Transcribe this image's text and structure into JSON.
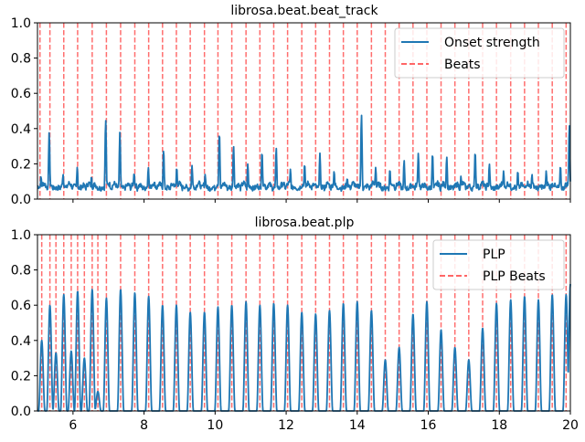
{
  "chart_data": [
    {
      "type": "line",
      "title": "librosa.beat.beat_track",
      "xlabel": "",
      "ylabel": "",
      "xlim": [
        5,
        20
      ],
      "ylim": [
        0,
        1
      ],
      "yticks": [
        0.0,
        0.2,
        0.4,
        0.6,
        0.8,
        1.0
      ],
      "ytick_labels": [
        "0.0",
        "0.2",
        "0.4",
        "0.6",
        "0.8",
        "1.0"
      ],
      "show_xtick_labels": false,
      "legend_position": "top-right",
      "series": [
        {
          "name": "Onset strength",
          "kind": "line",
          "color": "#1f77b4",
          "peaks": [
            [
              5.1,
              0.13
            ],
            [
              5.33,
              0.38
            ],
            [
              5.72,
              0.14
            ],
            [
              6.12,
              0.18
            ],
            [
              6.52,
              0.13
            ],
            [
              6.92,
              0.45
            ],
            [
              7.32,
              0.38
            ],
            [
              7.72,
              0.15
            ],
            [
              8.12,
              0.18
            ],
            [
              8.55,
              0.28
            ],
            [
              8.92,
              0.18
            ],
            [
              9.35,
              0.19
            ],
            [
              9.72,
              0.14
            ],
            [
              10.12,
              0.38
            ],
            [
              10.52,
              0.3
            ],
            [
              10.92,
              0.2
            ],
            [
              11.32,
              0.27
            ],
            [
              11.72,
              0.29
            ],
            [
              12.12,
              0.17
            ],
            [
              12.52,
              0.2
            ],
            [
              12.95,
              0.26
            ],
            [
              13.35,
              0.16
            ],
            [
              13.72,
              0.12
            ],
            [
              14.12,
              0.48
            ],
            [
              14.52,
              0.18
            ],
            [
              14.92,
              0.17
            ],
            [
              15.32,
              0.22
            ],
            [
              15.72,
              0.26
            ],
            [
              16.12,
              0.26
            ],
            [
              16.52,
              0.24
            ],
            [
              16.92,
              0.13
            ],
            [
              17.32,
              0.27
            ],
            [
              17.72,
              0.2
            ],
            [
              18.12,
              0.16
            ],
            [
              18.52,
              0.16
            ],
            [
              18.92,
              0.14
            ],
            [
              19.32,
              0.16
            ],
            [
              19.72,
              0.19
            ],
            [
              19.97,
              0.42
            ]
          ]
        },
        {
          "name": "Beats",
          "kind": "vlines",
          "color": "#ff6666",
          "x": [
            5.07,
            5.35,
            5.74,
            6.13,
            6.54,
            6.94,
            7.34,
            7.74,
            8.13,
            8.52,
            8.91,
            9.3,
            9.7,
            10.08,
            10.47,
            10.87,
            11.26,
            11.65,
            12.04,
            12.44,
            12.83,
            13.22,
            13.61,
            14.0,
            14.4,
            14.79,
            15.18,
            15.57,
            15.96,
            16.36,
            16.75,
            17.14,
            17.53,
            17.92,
            18.32,
            18.71,
            19.1,
            19.49,
            19.88
          ]
        }
      ]
    },
    {
      "type": "line",
      "title": "librosa.beat.plp",
      "xlabel": "",
      "ylabel": "",
      "xlim": [
        5,
        20
      ],
      "ylim": [
        0,
        1
      ],
      "xticks": [
        6,
        8,
        10,
        12,
        14,
        16,
        18,
        20
      ],
      "xtick_labels": [
        "6",
        "8",
        "10",
        "12",
        "14",
        "16",
        "18",
        "20"
      ],
      "yticks": [
        0.0,
        0.2,
        0.4,
        0.6,
        0.8,
        1.0
      ],
      "ytick_labels": [
        "0.0",
        "0.2",
        "0.4",
        "0.6",
        "0.8",
        "1.0"
      ],
      "show_xtick_labels": true,
      "legend_position": "top-right",
      "series": [
        {
          "name": "PLP",
          "kind": "line",
          "color": "#1f77b4",
          "peaks": [
            [
              5.12,
              0.4
            ],
            [
              5.35,
              0.6
            ],
            [
              5.52,
              0.33
            ],
            [
              5.74,
              0.66
            ],
            [
              5.95,
              0.34
            ],
            [
              6.13,
              0.68
            ],
            [
              6.32,
              0.3
            ],
            [
              6.54,
              0.69
            ],
            [
              6.7,
              0.11
            ],
            [
              6.94,
              0.64
            ],
            [
              7.34,
              0.69
            ],
            [
              7.74,
              0.67
            ],
            [
              8.13,
              0.65
            ],
            [
              8.52,
              0.6
            ],
            [
              8.91,
              0.6
            ],
            [
              9.3,
              0.56
            ],
            [
              9.7,
              0.56
            ],
            [
              10.08,
              0.59
            ],
            [
              10.47,
              0.6
            ],
            [
              10.87,
              0.62
            ],
            [
              11.26,
              0.6
            ],
            [
              11.65,
              0.61
            ],
            [
              12.04,
              0.6
            ],
            [
              12.44,
              0.56
            ],
            [
              12.83,
              0.55
            ],
            [
              13.22,
              0.57
            ],
            [
              13.61,
              0.61
            ],
            [
              14.0,
              0.62
            ],
            [
              14.4,
              0.57
            ],
            [
              14.79,
              0.29
            ],
            [
              15.18,
              0.36
            ],
            [
              15.57,
              0.55
            ],
            [
              15.96,
              0.62
            ],
            [
              16.36,
              0.46
            ],
            [
              16.75,
              0.36
            ],
            [
              17.14,
              0.29
            ],
            [
              17.53,
              0.47
            ],
            [
              17.92,
              0.61
            ],
            [
              18.32,
              0.63
            ],
            [
              18.71,
              0.65
            ],
            [
              19.1,
              0.63
            ],
            [
              19.49,
              0.66
            ],
            [
              19.88,
              0.66
            ],
            [
              20.0,
              0.72
            ]
          ]
        },
        {
          "name": "PLP Beats",
          "kind": "vlines",
          "color": "#ff6666",
          "x": [
            5.12,
            5.35,
            5.52,
            5.74,
            5.95,
            6.13,
            6.32,
            6.54,
            6.7,
            6.94,
            7.34,
            7.74,
            8.13,
            8.52,
            8.91,
            9.3,
            9.7,
            10.08,
            10.47,
            10.87,
            11.26,
            11.65,
            12.04,
            12.44,
            12.83,
            13.22,
            13.61,
            14.0,
            14.4,
            14.79,
            15.18,
            15.57,
            15.96,
            16.36,
            16.75,
            17.14,
            17.53,
            17.92,
            18.32,
            18.71,
            19.1,
            19.49,
            19.88
          ]
        }
      ]
    }
  ]
}
